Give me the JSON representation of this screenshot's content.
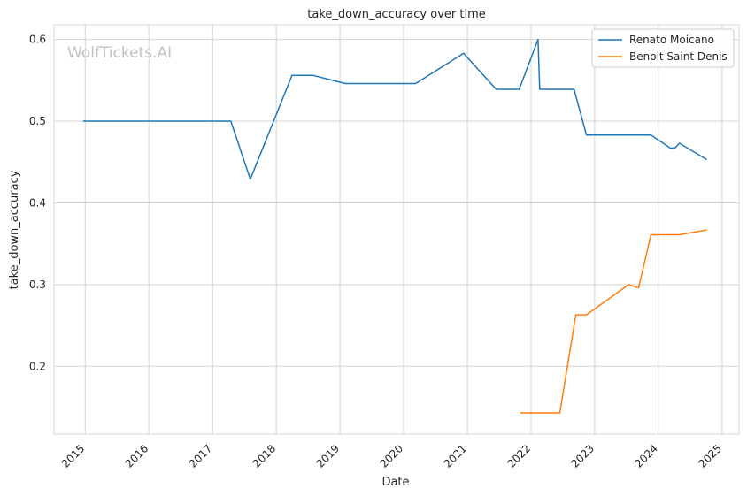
{
  "chart_data": {
    "type": "line",
    "title": "take_down_accuracy over time",
    "xlabel": "Date",
    "ylabel": "take_down_accuracy",
    "watermark": "WolfTickets.AI",
    "x_ticks": [
      "2015",
      "2016",
      "2017",
      "2018",
      "2019",
      "2020",
      "2021",
      "2022",
      "2023",
      "2024",
      "2025"
    ],
    "y_ticks": [
      "0.2",
      "0.3",
      "0.4",
      "0.5",
      "0.6"
    ],
    "xlim": [
      "2014-07-06",
      "2025-04-08"
    ],
    "ylim": [
      0.117,
      0.618
    ],
    "grid": true,
    "legend_position": "top-right",
    "series": [
      {
        "name": "Renato Moicano",
        "color": "#1f77b4",
        "points": [
          [
            "2014-12-20",
            0.5
          ],
          [
            "2017-04-15",
            0.5
          ],
          [
            "2017-08-05",
            0.429
          ],
          [
            "2018-04-01",
            0.556
          ],
          [
            "2018-08-01",
            0.556
          ],
          [
            "2019-02-01",
            0.546
          ],
          [
            "2020-03-10",
            0.546
          ],
          [
            "2020-12-10",
            0.583
          ],
          [
            "2021-06-15",
            0.539
          ],
          [
            "2021-10-25",
            0.539
          ],
          [
            "2022-02-10",
            0.6
          ],
          [
            "2022-02-20",
            0.539
          ],
          [
            "2022-09-05",
            0.539
          ],
          [
            "2022-11-15",
            0.483
          ],
          [
            "2023-11-20",
            0.483
          ],
          [
            "2024-03-10",
            0.467
          ],
          [
            "2024-04-05",
            0.467
          ],
          [
            "2024-05-01",
            0.473
          ],
          [
            "2024-10-05",
            0.453
          ]
        ]
      },
      {
        "name": "Benoit Saint Denis",
        "color": "#ff7f0e",
        "points": [
          [
            "2021-11-01",
            0.143
          ],
          [
            "2022-06-15",
            0.143
          ],
          [
            "2022-09-15",
            0.263
          ],
          [
            "2022-11-15",
            0.263
          ],
          [
            "2023-07-15",
            0.3
          ],
          [
            "2023-09-10",
            0.296
          ],
          [
            "2023-11-20",
            0.361
          ],
          [
            "2024-05-01",
            0.361
          ],
          [
            "2024-10-05",
            0.367
          ]
        ]
      }
    ]
  }
}
